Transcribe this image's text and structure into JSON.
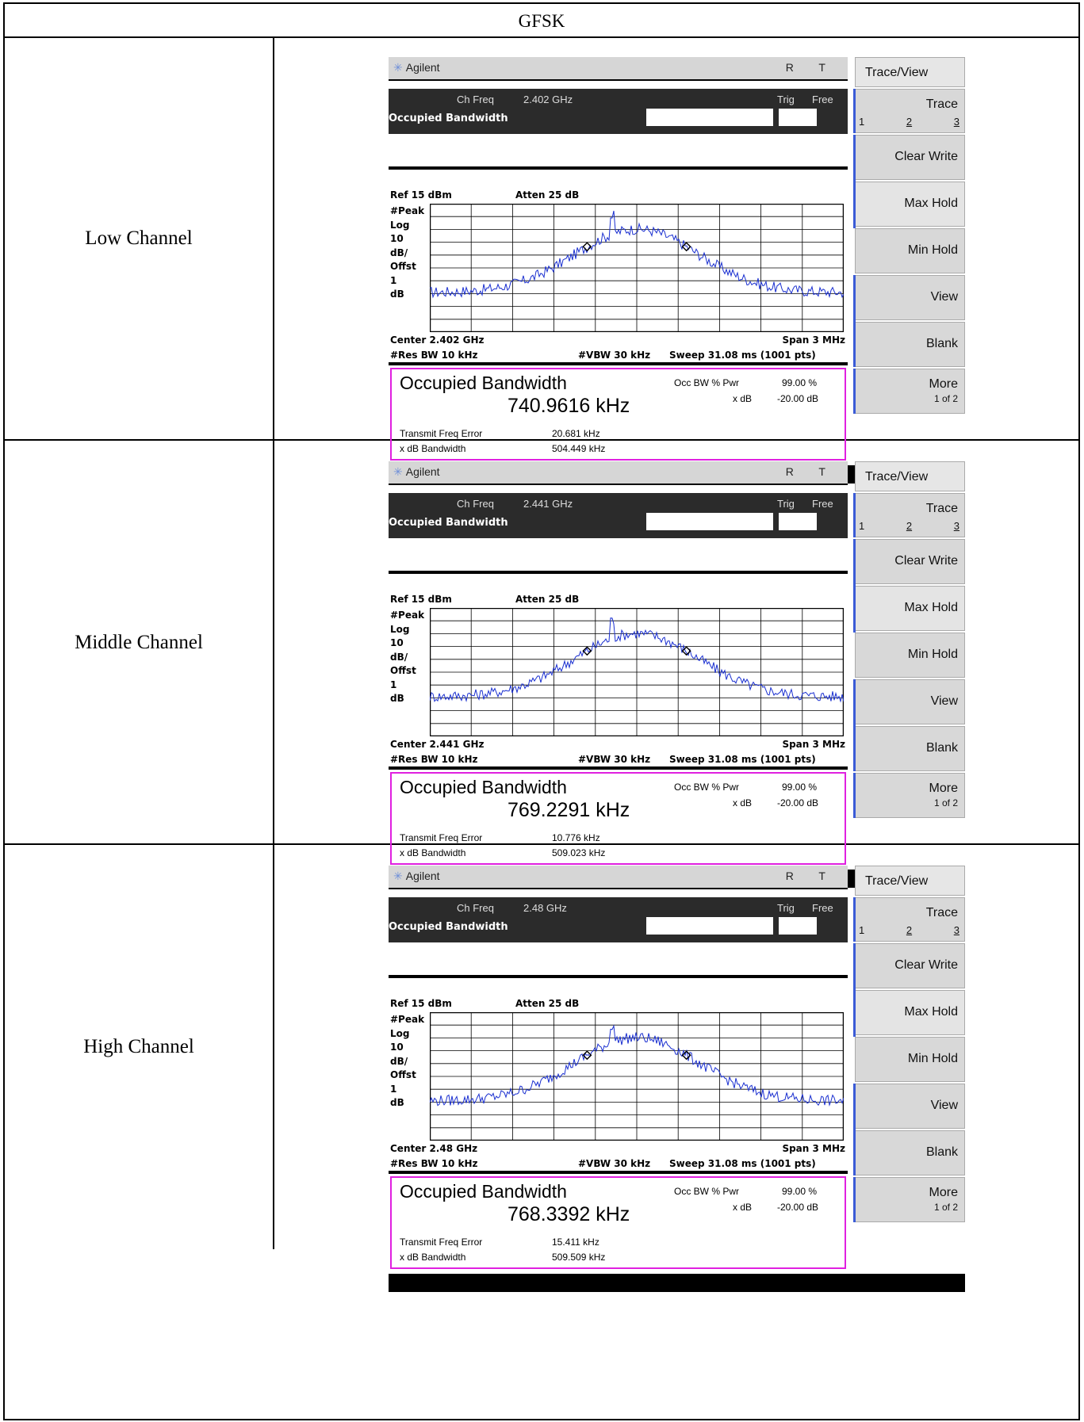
{
  "header": "GFSK",
  "analyzer": {
    "brand": "Agilent",
    "rt": "R T",
    "ch_freq_label": "Ch Freq",
    "trig": "Trig",
    "free": "Free",
    "mode": "Occupied Bandwidth",
    "ref": "Ref 15 dBm",
    "atten": "Atten 25 dB",
    "side": [
      "#Peak",
      "Log",
      "10",
      "dB/",
      "Offst",
      "1",
      "dB"
    ],
    "span": "Span 3 MHz",
    "rbw": "#Res BW 10 kHz",
    "vbw": "#VBW 30 kHz",
    "sweep": "Sweep 31.08 ms (1001 pts)",
    "result_title": "Occupied Bandwidth",
    "occ_label": "Occ BW % Pwr",
    "occ_val": "99.00 %",
    "xdb_label": "x dB",
    "xdb_val": "-20.00 dB",
    "tfe_label": "Transmit Freq Error",
    "xbw_label": "x dB Bandwidth",
    "softkeys": {
      "menu": "Trace/View",
      "trace": "Trace",
      "trace_nums": [
        "1",
        "2",
        "3"
      ],
      "clear": "Clear Write",
      "max": "Max Hold",
      "min": "Min Hold",
      "view": "View",
      "blank": "Blank",
      "more": "More",
      "more_sub": "1 of 2"
    }
  },
  "rows": [
    {
      "label": "Low Channel",
      "ch_freq": "2.402 GHz",
      "center": "Center 2.402 GHz",
      "obw": "740.9616 kHz",
      "tfe": "20.681 kHz",
      "xbw": "504.449 kHz"
    },
    {
      "label": "Middle Channel",
      "ch_freq": "2.441 GHz",
      "center": "Center 2.441 GHz",
      "obw": "769.2291 kHz",
      "tfe": "10.776 kHz",
      "xbw": "509.023 kHz"
    },
    {
      "label": "High Channel",
      "ch_freq": "2.48 GHz",
      "center": "Center 2.48 GHz",
      "obw": "768.3392 kHz",
      "tfe": "15.411 kHz",
      "xbw": "509.509 kHz"
    }
  ],
  "colors": {
    "trace": "#1a2fd0",
    "result_border": "#e020e0",
    "softkey_bar": "#3b5bd6"
  }
}
